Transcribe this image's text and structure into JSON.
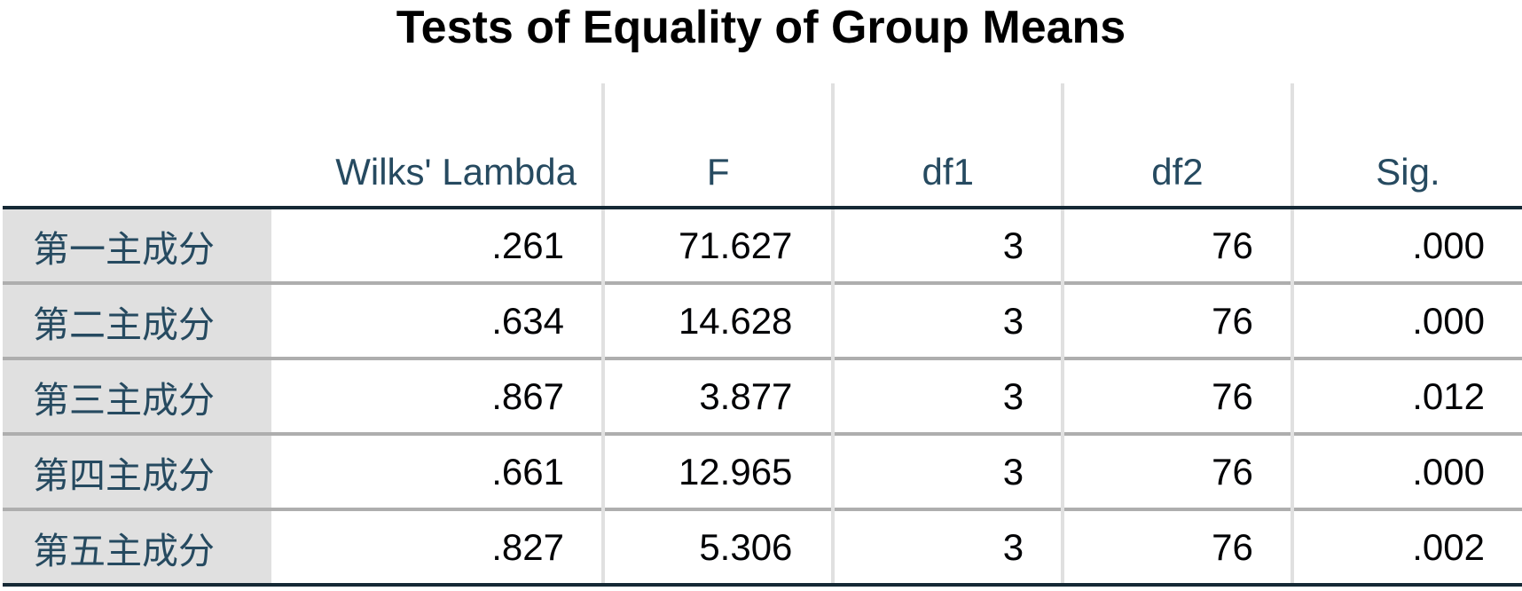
{
  "table": {
    "title": "Tests of Equality of Group Means",
    "columns": [
      "Wilks' Lambda",
      "F",
      "df1",
      "df2",
      "Sig."
    ],
    "rows": [
      {
        "label": "第一主成分",
        "wilks_lambda": ".261",
        "f": "71.627",
        "df1": "3",
        "df2": "76",
        "sig": ".000"
      },
      {
        "label": "第二主成分",
        "wilks_lambda": ".634",
        "f": "14.628",
        "df1": "3",
        "df2": "76",
        "sig": ".000"
      },
      {
        "label": "第三主成分",
        "wilks_lambda": ".867",
        "f": "3.877",
        "df1": "3",
        "df2": "76",
        "sig": ".012"
      },
      {
        "label": "第四主成分",
        "wilks_lambda": ".661",
        "f": "12.965",
        "df1": "3",
        "df2": "76",
        "sig": ".000"
      },
      {
        "label": "第五主成分",
        "wilks_lambda": ".827",
        "f": "5.306",
        "df1": "3",
        "df2": "76",
        "sig": ".002"
      }
    ]
  },
  "colors": {
    "header_text": "#264a60",
    "cell_text": "#010205",
    "label_background": "#e0e0e0",
    "rule_dark": "#152935",
    "rule_light": "#aeaeae"
  }
}
